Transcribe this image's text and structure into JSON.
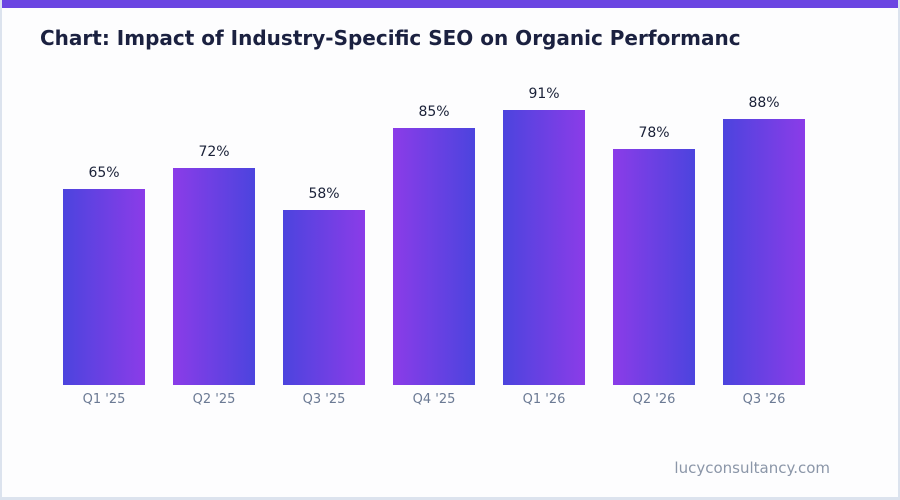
{
  "page": {
    "title": "Chart: Impact of Industry-Specific SEO on Organic Performanc",
    "footer": "lucyconsultancy.com"
  },
  "colors": {
    "accent_bar": "#6b45e2",
    "bar_a": "#4c44de",
    "bar_b": "#8b3ce8",
    "title_text": "#1b2140",
    "value_label": "#1a2138",
    "axis_label": "#6b7a94",
    "footer_text": "#8b96a8",
    "card_border": "#dce3ee",
    "background": "#fdfdfe"
  },
  "chart_data": {
    "type": "bar",
    "title": "Chart: Impact of Industry-Specific SEO on Organic Performanc",
    "categories": [
      "Q1 '25",
      "Q2 '25",
      "Q3 '25",
      "Q4 '25",
      "Q1 '26",
      "Q2 '26",
      "Q3 '26"
    ],
    "values": [
      65,
      72,
      58,
      85,
      91,
      78,
      88
    ],
    "value_suffix": "%",
    "xlabel": "",
    "ylabel": "",
    "ylim": [
      0,
      100
    ],
    "grid": false,
    "legend": "none",
    "bar_style": "horizontal purple gradient, direction alternating per bar",
    "value_labels_position": "above bars"
  }
}
